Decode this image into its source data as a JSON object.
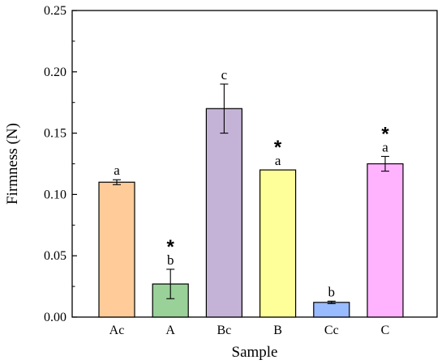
{
  "chart_data": {
    "type": "bar",
    "xlabel": "Sample",
    "ylabel": "Firmness (N)",
    "ylim": [
      0,
      0.25
    ],
    "yticks": [
      "0.00",
      "0.05",
      "0.10",
      "0.15",
      "0.20",
      "0.25"
    ],
    "grid": false,
    "legend": "none",
    "categories": [
      "Ac",
      "A",
      "Bc",
      "B",
      "Cc",
      "C"
    ],
    "values": [
      0.11,
      0.027,
      0.17,
      0.12,
      0.012,
      0.125
    ],
    "errors": [
      0.002,
      0.012,
      0.02,
      0.0,
      0.001,
      0.006
    ],
    "colors": [
      "#FFCC99",
      "#99D199",
      "#C5B3D7",
      "#FFFF99",
      "#99BBFF",
      "#FFB3FF"
    ],
    "significance_letters": [
      "a",
      "b",
      "c",
      "a",
      "b",
      "a"
    ],
    "significance_star": [
      false,
      true,
      false,
      true,
      false,
      true
    ],
    "star_symbol": "*"
  }
}
